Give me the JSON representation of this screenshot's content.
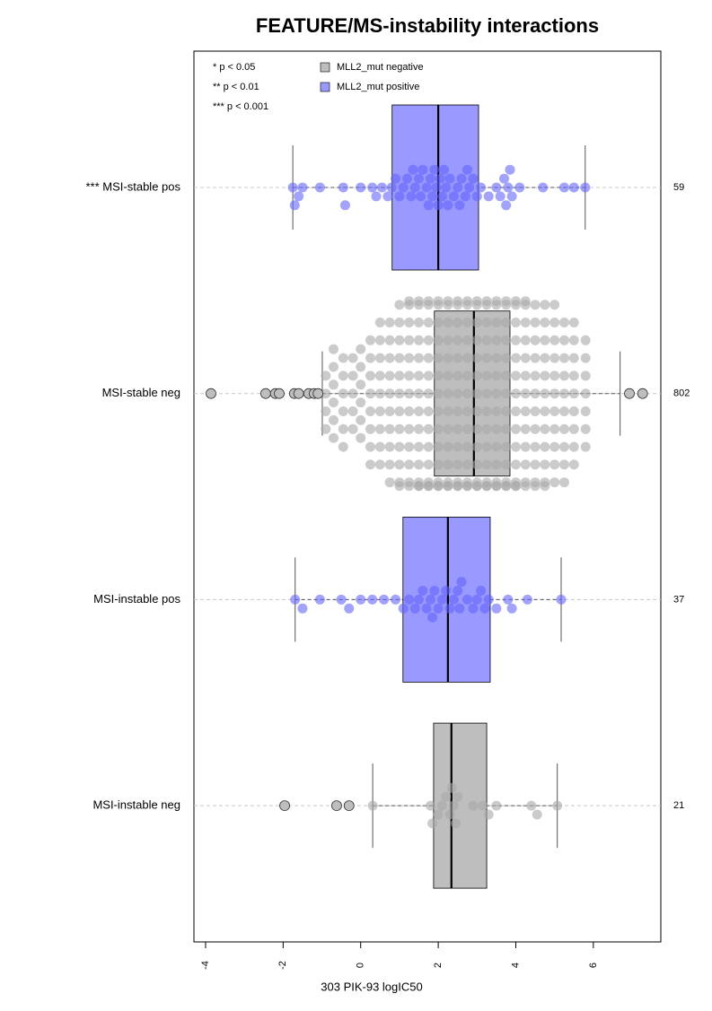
{
  "chart_data": {
    "type": "boxplot",
    "title": "FEATURE/MS-instability interactions",
    "xlabel": "303 PIK-93 logIC50",
    "xlim": [
      -4.3,
      7.74
    ],
    "xticks": [
      -4,
      -2,
      0,
      2,
      4,
      6
    ],
    "annotations": [
      "* p < 0.05",
      "** p < 0.01",
      "*** p < 0.001"
    ],
    "legend": [
      {
        "name": "MLL2_mut negative",
        "color": "#bebebe"
      },
      {
        "name": "MLL2_mut positive",
        "color": "#9999ff"
      }
    ],
    "boxes": [
      {
        "category": "*** MSI-stable pos",
        "count": 59,
        "color": "#9999ff",
        "point_color": "#6464ff",
        "q1": 0.81,
        "median": 2.0,
        "q3": 3.04,
        "whisker_low": -1.75,
        "whisker_high": 5.79,
        "outliers": [],
        "points": [
          -1.75,
          -1.7,
          -1.6,
          -1.5,
          -1.05,
          -0.45,
          -0.4,
          0,
          0.3,
          0.4,
          0.55,
          0.7,
          0.8,
          0.9,
          1.0,
          1.1,
          1.2,
          1.3,
          1.35,
          1.4,
          1.5,
          1.55,
          1.6,
          1.7,
          1.75,
          1.8,
          1.85,
          1.9,
          1.95,
          2.0,
          2.05,
          2.1,
          2.15,
          2.2,
          2.25,
          2.3,
          2.4,
          2.5,
          2.55,
          2.6,
          2.7,
          2.75,
          2.8,
          2.9,
          3.0,
          3.1,
          3.3,
          3.5,
          3.6,
          3.7,
          3.75,
          3.8,
          3.85,
          3.9,
          4.1,
          4.7,
          5.25,
          5.5,
          5.79
        ]
      },
      {
        "category": "MSI-stable neg",
        "count": 802,
        "color": "#bebebe",
        "point_color": "#a8a8a8",
        "q1": 1.9,
        "median": 2.92,
        "q3": 3.85,
        "whisker_low": -0.99,
        "whisker_high": 6.69,
        "outliers": [
          -3.86,
          -2.45,
          -2.2,
          -2.1,
          -1.71,
          -1.6,
          -1.34,
          -1.2,
          -1.1,
          6.93,
          7.27
        ],
        "points": [
          -0.9,
          -0.9,
          -0.9,
          -0.9,
          -0.7,
          -0.7,
          -0.7,
          -0.7,
          -0.7,
          -0.7,
          -0.45,
          -0.45,
          -0.45,
          -0.45,
          -0.45,
          -0.45,
          -0.2,
          -0.2,
          -0.2,
          -0.2,
          -0.2,
          0,
          0,
          0,
          0,
          0,
          0,
          0.25,
          0.25,
          0.25,
          0.25,
          0.25,
          0.25,
          0.25,
          0.25,
          0.5,
          0.5,
          0.5,
          0.5,
          0.5,
          0.5,
          0.5,
          0.5,
          0.5,
          0.75,
          0.75,
          0.75,
          0.75,
          0.75,
          0.75,
          0.75,
          0.75,
          0.75,
          0.75,
          1,
          1,
          1,
          1,
          1,
          1,
          1,
          1,
          1,
          1,
          1,
          1,
          1.25,
          1.25,
          1.25,
          1.25,
          1.25,
          1.25,
          1.25,
          1.25,
          1.25,
          1.25,
          1.25,
          1.25,
          1.25,
          1.5,
          1.5,
          1.5,
          1.5,
          1.5,
          1.5,
          1.5,
          1.5,
          1.5,
          1.5,
          1.5,
          1.5,
          1.5,
          1.5,
          1.75,
          1.75,
          1.75,
          1.75,
          1.75,
          1.75,
          1.75,
          1.75,
          1.75,
          1.75,
          1.75,
          1.75,
          1.75,
          1.75,
          2,
          2,
          2,
          2,
          2,
          2,
          2,
          2,
          2,
          2,
          2,
          2,
          2,
          2,
          2.25,
          2.25,
          2.25,
          2.25,
          2.25,
          2.25,
          2.25,
          2.25,
          2.25,
          2.25,
          2.25,
          2.25,
          2.25,
          2.25,
          2.5,
          2.5,
          2.5,
          2.5,
          2.5,
          2.5,
          2.5,
          2.5,
          2.5,
          2.5,
          2.5,
          2.5,
          2.5,
          2.5,
          2.75,
          2.75,
          2.75,
          2.75,
          2.75,
          2.75,
          2.75,
          2.75,
          2.75,
          2.75,
          2.75,
          2.75,
          2.75,
          2.75,
          3,
          3,
          3,
          3,
          3,
          3,
          3,
          3,
          3,
          3,
          3,
          3,
          3,
          3,
          3.25,
          3.25,
          3.25,
          3.25,
          3.25,
          3.25,
          3.25,
          3.25,
          3.25,
          3.25,
          3.25,
          3.25,
          3.25,
          3.25,
          3.5,
          3.5,
          3.5,
          3.5,
          3.5,
          3.5,
          3.5,
          3.5,
          3.5,
          3.5,
          3.5,
          3.5,
          3.5,
          3.5,
          3.75,
          3.75,
          3.75,
          3.75,
          3.75,
          3.75,
          3.75,
          3.75,
          3.75,
          3.75,
          3.75,
          3.75,
          3.75,
          3.75,
          4,
          4,
          4,
          4,
          4,
          4,
          4,
          4,
          4,
          4,
          4,
          4,
          4,
          4,
          4.25,
          4.25,
          4.25,
          4.25,
          4.25,
          4.25,
          4.25,
          4.25,
          4.25,
          4.25,
          4.25,
          4.25,
          4.25,
          4.5,
          4.5,
          4.5,
          4.5,
          4.5,
          4.5,
          4.5,
          4.5,
          4.5,
          4.5,
          4.5,
          4.5,
          4.75,
          4.75,
          4.75,
          4.75,
          4.75,
          4.75,
          4.75,
          4.75,
          4.75,
          4.75,
          4.75,
          4.75,
          5,
          5,
          5,
          5,
          5,
          5,
          5,
          5,
          5,
          5,
          5,
          5.25,
          5.25,
          5.25,
          5.25,
          5.25,
          5.25,
          5.25,
          5.25,
          5.25,
          5.25,
          5.5,
          5.5,
          5.5,
          5.5,
          5.5,
          5.5,
          5.5,
          5.5,
          5.5,
          5.8,
          5.8,
          5.8,
          5.8,
          5.8,
          5.8,
          5.8
        ]
      },
      {
        "category": "MSI-instable pos",
        "count": 37,
        "color": "#9999ff",
        "point_color": "#6464ff",
        "q1": 1.09,
        "median": 2.25,
        "q3": 3.34,
        "whisker_low": -1.69,
        "whisker_high": 5.17,
        "outliers": [],
        "points": [
          -1.69,
          -1.5,
          -1.05,
          -0.5,
          -0.3,
          0,
          0.3,
          0.6,
          0.9,
          1.1,
          1.25,
          1.4,
          1.5,
          1.6,
          1.7,
          1.8,
          1.85,
          1.9,
          2.0,
          2.1,
          2.2,
          2.3,
          2.4,
          2.5,
          2.55,
          2.6,
          2.75,
          2.9,
          3.0,
          3.1,
          3.2,
          3.3,
          3.5,
          3.8,
          3.9,
          4.3,
          5.17
        ]
      },
      {
        "category": "MSI-instable neg",
        "count": 21,
        "color": "#bebebe",
        "point_color": "#a8a8a8",
        "q1": 1.88,
        "median": 2.34,
        "q3": 3.25,
        "whisker_low": 0.31,
        "whisker_high": 5.07,
        "outliers": [
          -1.96,
          -0.62,
          -0.3
        ],
        "points": [
          0.31,
          1.8,
          1.85,
          2.0,
          2.1,
          2.2,
          2.3,
          2.35,
          2.4,
          2.45,
          2.5,
          2.9,
          3.15,
          3.3,
          3.5,
          4.4,
          4.55,
          5.07
        ]
      }
    ]
  }
}
